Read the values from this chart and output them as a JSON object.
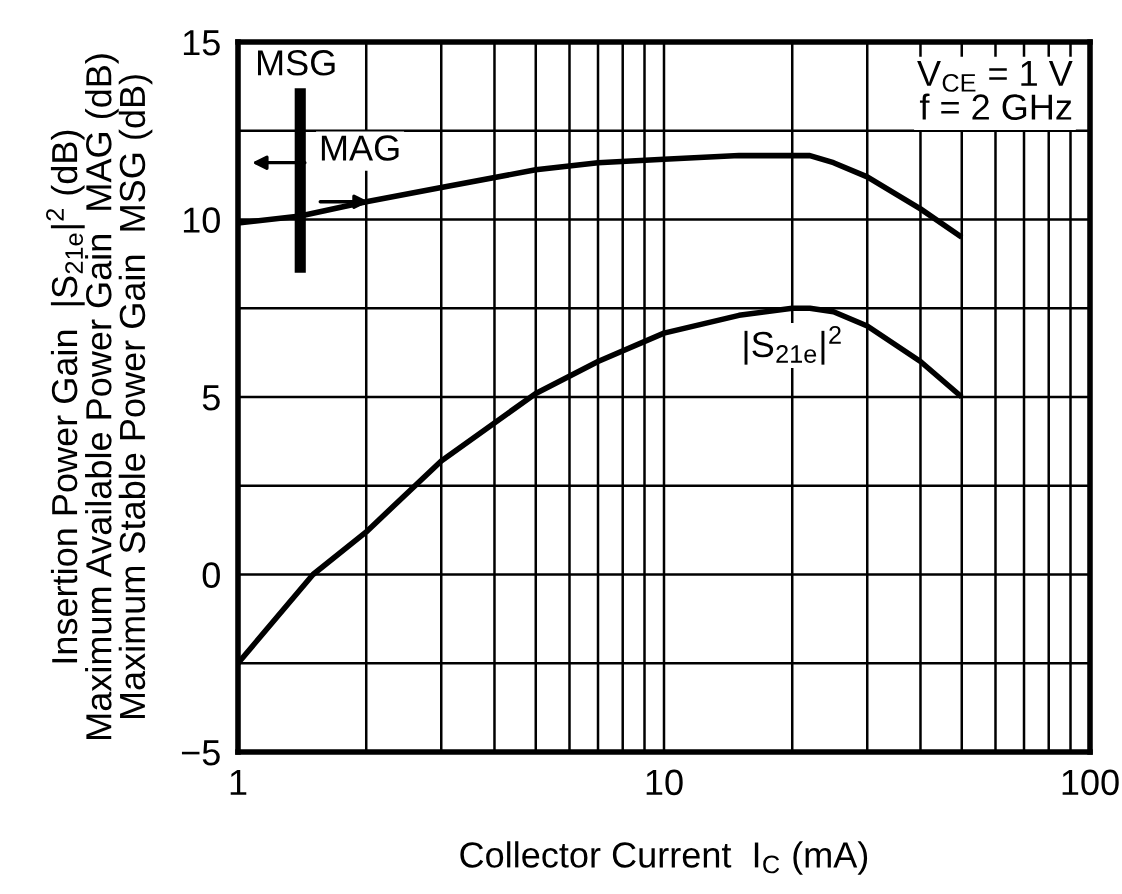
{
  "chart_data": {
    "type": "line",
    "xlabel": "Collector Current  I$_{C}$ (mA)",
    "ylabel": "Insertion Power Gain  |S$_{21e}$|$^{2}$ (dB)\nMaximum Available Power Gain  MAG (dB)\nMaximum Stable Power Gain  MSG (dB)",
    "log": "x",
    "grid": true,
    "legend": false,
    "xlim": [
      1,
      100
    ],
    "ylim": [
      -5,
      15
    ],
    "xticks": [
      1,
      {
        "value": 2,
        "label": null
      },
      {
        "value": 3,
        "label": null
      },
      {
        "value": 4,
        "label": null
      },
      {
        "value": 5,
        "label": null
      },
      {
        "value": 6,
        "label": null
      },
      {
        "value": 7,
        "label": null
      },
      {
        "value": 8,
        "label": null
      },
      {
        "value": 9,
        "label": null
      },
      10,
      {
        "value": 20,
        "label": null
      },
      {
        "value": 30,
        "label": null
      },
      {
        "value": 40,
        "label": null
      },
      {
        "value": 50,
        "label": null
      },
      {
        "value": 60,
        "label": null
      },
      {
        "value": 70,
        "label": null
      },
      {
        "value": 80,
        "label": null
      },
      {
        "value": 90,
        "label": null
      },
      100
    ],
    "yticks": [
      {
        "value": -5,
        "label": "−5"
      },
      {
        "value": -2.5,
        "label": null
      },
      0,
      {
        "value": 2.5,
        "label": null
      },
      5,
      {
        "value": 7.5,
        "label": null
      },
      10,
      {
        "value": 12.5,
        "label": null
      },
      15
    ],
    "series": [
      {
        "color": "#000000",
        "x": [
          1,
          1.4,
          2,
          3,
          5,
          7,
          10,
          15,
          20,
          22,
          25,
          30,
          40,
          50
        ],
        "values": [
          9.9,
          10.1,
          10.5,
          10.9,
          11.4,
          11.6,
          11.7,
          11.8,
          11.8,
          11.8,
          11.6,
          11.2,
          10.3,
          9.5
        ]
      },
      {
        "name": "|S$_{21e}$|$^{2}$",
        "color": "#000000",
        "x": [
          1,
          1.5,
          2,
          3,
          5,
          7,
          10,
          15,
          20,
          22,
          25,
          30,
          40,
          50
        ],
        "values": [
          -2.5,
          0,
          1.2,
          3.2,
          5.1,
          6.0,
          6.8,
          7.3,
          7.5,
          7.5,
          7.4,
          7.0,
          6.0,
          5.0
        ]
      },
      {
        "color": "#000000",
        "x": [
          1.4,
          1.4
        ],
        "values": [
          8.5,
          13.7
        ],
        "line_style": "solid"
      }
    ],
    "annotations": [
      "MSG",
      "MAG",
      "V$_{CE}$ = 1 V\nf = 2 GHz"
    ]
  }
}
